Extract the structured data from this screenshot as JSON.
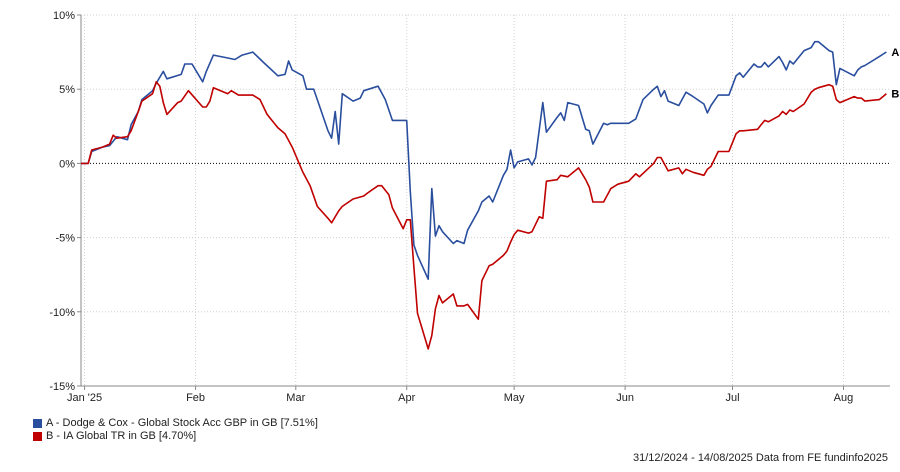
{
  "chart_data": {
    "type": "line",
    "yaxis": {
      "min": -15,
      "max": 10,
      "ticks": [
        10,
        5,
        0,
        -5,
        -10,
        -15
      ],
      "tick_labels": [
        "10%",
        "5%",
        "0%",
        "-5%",
        "-10%",
        "-15%"
      ],
      "zero_line": "dotted black"
    },
    "xaxis": {
      "start": "2024-12-31",
      "end": "2025-08-14",
      "ticks": [
        {
          "date": "2025-01-01",
          "label": "Jan '25"
        },
        {
          "date": "2025-02-01",
          "label": "Feb"
        },
        {
          "date": "2025-03-01",
          "label": "Mar"
        },
        {
          "date": "2025-04-01",
          "label": "Apr"
        },
        {
          "date": "2025-05-01",
          "label": "May"
        },
        {
          "date": "2025-06-01",
          "label": "Jun"
        },
        {
          "date": "2025-07-01",
          "label": "Jul"
        },
        {
          "date": "2025-08-01",
          "label": "Aug"
        }
      ]
    },
    "grid": "vertical at month ticks, horizontal at y ticks",
    "legend_position": "bottom-left",
    "series": [
      {
        "id": "A",
        "name": "A - Dodge & Cox - Global Stock Acc GBP in GB [7.51%]",
        "end_label": "A",
        "color": "#2a4e9e",
        "points": [
          [
            "2024-12-31",
            0.0
          ],
          [
            "2025-01-02",
            0.0
          ],
          [
            "2025-01-03",
            0.8
          ],
          [
            "2025-01-06",
            1.1
          ],
          [
            "2025-01-08",
            1.2
          ],
          [
            "2025-01-10",
            1.8
          ],
          [
            "2025-01-13",
            1.6
          ],
          [
            "2025-01-14",
            2.6
          ],
          [
            "2025-01-16",
            3.5
          ],
          [
            "2025-01-17",
            4.3
          ],
          [
            "2025-01-20",
            4.9
          ],
          [
            "2025-01-21",
            5.4
          ],
          [
            "2025-01-23",
            6.2
          ],
          [
            "2025-01-24",
            5.7
          ],
          [
            "2025-01-28",
            6.0
          ],
          [
            "2025-01-29",
            6.7
          ],
          [
            "2025-01-31",
            6.7
          ],
          [
            "2025-02-03",
            5.5
          ],
          [
            "2025-02-04",
            6.2
          ],
          [
            "2025-02-06",
            7.3
          ],
          [
            "2025-02-10",
            7.1
          ],
          [
            "2025-02-12",
            7.0
          ],
          [
            "2025-02-14",
            7.3
          ],
          [
            "2025-02-17",
            7.5
          ],
          [
            "2025-02-20",
            6.8
          ],
          [
            "2025-02-24",
            5.9
          ],
          [
            "2025-02-26",
            6.0
          ],
          [
            "2025-02-27",
            6.9
          ],
          [
            "2025-02-28",
            6.3
          ],
          [
            "2025-03-03",
            5.9
          ],
          [
            "2025-03-04",
            5.0
          ],
          [
            "2025-03-06",
            5.0
          ],
          [
            "2025-03-07",
            4.3
          ],
          [
            "2025-03-10",
            2.2
          ],
          [
            "2025-03-11",
            1.7
          ],
          [
            "2025-03-12",
            3.5
          ],
          [
            "2025-03-13",
            1.3
          ],
          [
            "2025-03-14",
            4.7
          ],
          [
            "2025-03-17",
            4.2
          ],
          [
            "2025-03-19",
            4.4
          ],
          [
            "2025-03-20",
            4.9
          ],
          [
            "2025-03-24",
            5.2
          ],
          [
            "2025-03-26",
            4.3
          ],
          [
            "2025-03-28",
            2.9
          ],
          [
            "2025-03-31",
            2.9
          ],
          [
            "2025-04-01",
            2.9
          ],
          [
            "2025-04-02",
            -1.9
          ],
          [
            "2025-04-03",
            -5.5
          ],
          [
            "2025-04-04",
            -6.2
          ],
          [
            "2025-04-07",
            -7.8
          ],
          [
            "2025-04-08",
            -1.7
          ],
          [
            "2025-04-09",
            -4.9
          ],
          [
            "2025-04-10",
            -4.2
          ],
          [
            "2025-04-11",
            -4.6
          ],
          [
            "2025-04-14",
            -5.4
          ],
          [
            "2025-04-15",
            -5.2
          ],
          [
            "2025-04-17",
            -5.4
          ],
          [
            "2025-04-18",
            -4.5
          ],
          [
            "2025-04-21",
            -3.2
          ],
          [
            "2025-04-22",
            -2.6
          ],
          [
            "2025-04-24",
            -2.2
          ],
          [
            "2025-04-25",
            -2.6
          ],
          [
            "2025-04-28",
            -0.8
          ],
          [
            "2025-04-29",
            -0.4
          ],
          [
            "2025-04-30",
            0.9
          ],
          [
            "2025-05-01",
            -0.3
          ],
          [
            "2025-05-02",
            0.1
          ],
          [
            "2025-05-05",
            0.3
          ],
          [
            "2025-05-06",
            -0.1
          ],
          [
            "2025-05-07",
            0.4
          ],
          [
            "2025-05-09",
            4.1
          ],
          [
            "2025-05-10",
            2.1
          ],
          [
            "2025-05-13",
            3.1
          ],
          [
            "2025-05-14",
            3.4
          ],
          [
            "2025-05-15",
            2.9
          ],
          [
            "2025-05-16",
            4.1
          ],
          [
            "2025-05-19",
            3.9
          ],
          [
            "2025-05-21",
            2.3
          ],
          [
            "2025-05-22",
            2.2
          ],
          [
            "2025-05-23",
            1.3
          ],
          [
            "2025-05-26",
            2.7
          ],
          [
            "2025-05-27",
            2.6
          ],
          [
            "2025-05-28",
            2.7
          ],
          [
            "2025-06-02",
            2.7
          ],
          [
            "2025-06-04",
            3.0
          ],
          [
            "2025-06-06",
            4.3
          ],
          [
            "2025-06-09",
            5.0
          ],
          [
            "2025-06-10",
            5.2
          ],
          [
            "2025-06-11",
            4.5
          ],
          [
            "2025-06-12",
            4.9
          ],
          [
            "2025-06-13",
            4.2
          ],
          [
            "2025-06-16",
            3.9
          ],
          [
            "2025-06-18",
            4.8
          ],
          [
            "2025-06-20",
            4.5
          ],
          [
            "2025-06-23",
            4.0
          ],
          [
            "2025-06-24",
            3.4
          ],
          [
            "2025-06-25",
            3.9
          ],
          [
            "2025-06-27",
            4.6
          ],
          [
            "2025-06-30",
            4.6
          ],
          [
            "2025-07-02",
            5.9
          ],
          [
            "2025-07-03",
            6.1
          ],
          [
            "2025-07-04",
            5.8
          ],
          [
            "2025-07-07",
            6.7
          ],
          [
            "2025-07-08",
            6.5
          ],
          [
            "2025-07-09",
            6.5
          ],
          [
            "2025-07-10",
            6.8
          ],
          [
            "2025-07-11",
            6.5
          ],
          [
            "2025-07-14",
            7.2
          ],
          [
            "2025-07-15",
            6.8
          ],
          [
            "2025-07-16",
            6.3
          ],
          [
            "2025-07-17",
            6.9
          ],
          [
            "2025-07-18",
            6.7
          ],
          [
            "2025-07-21",
            7.6
          ],
          [
            "2025-07-23",
            7.8
          ],
          [
            "2025-07-24",
            8.2
          ],
          [
            "2025-07-25",
            8.2
          ],
          [
            "2025-07-28",
            7.6
          ],
          [
            "2025-07-29",
            7.5
          ],
          [
            "2025-07-30",
            5.3
          ],
          [
            "2025-07-31",
            6.4
          ],
          [
            "2025-08-04",
            5.9
          ],
          [
            "2025-08-05",
            6.3
          ],
          [
            "2025-08-06",
            6.5
          ],
          [
            "2025-08-07",
            6.6
          ],
          [
            "2025-08-11",
            7.2
          ],
          [
            "2025-08-13",
            7.51
          ]
        ]
      },
      {
        "id": "B",
        "name": "B - IA Global TR in GB [4.70%]",
        "end_label": "B",
        "color": "#c00000",
        "points": [
          [
            "2024-12-31",
            0.0
          ],
          [
            "2025-01-02",
            0.0
          ],
          [
            "2025-01-03",
            0.9
          ],
          [
            "2025-01-06",
            1.1
          ],
          [
            "2025-01-08",
            1.3
          ],
          [
            "2025-01-09",
            1.9
          ],
          [
            "2025-01-10",
            1.7
          ],
          [
            "2025-01-13",
            1.8
          ],
          [
            "2025-01-14",
            2.2
          ],
          [
            "2025-01-16",
            3.5
          ],
          [
            "2025-01-17",
            4.2
          ],
          [
            "2025-01-20",
            4.7
          ],
          [
            "2025-01-21",
            5.5
          ],
          [
            "2025-01-22",
            5.2
          ],
          [
            "2025-01-23",
            4.1
          ],
          [
            "2025-01-24",
            3.3
          ],
          [
            "2025-01-27",
            4.1
          ],
          [
            "2025-01-28",
            4.2
          ],
          [
            "2025-01-30",
            4.9
          ],
          [
            "2025-02-03",
            3.8
          ],
          [
            "2025-02-04",
            3.8
          ],
          [
            "2025-02-05",
            4.2
          ],
          [
            "2025-02-06",
            5.1
          ],
          [
            "2025-02-10",
            4.7
          ],
          [
            "2025-02-11",
            4.9
          ],
          [
            "2025-02-13",
            4.6
          ],
          [
            "2025-02-17",
            4.6
          ],
          [
            "2025-02-19",
            4.3
          ],
          [
            "2025-02-21",
            3.3
          ],
          [
            "2025-02-24",
            2.4
          ],
          [
            "2025-02-26",
            2.0
          ],
          [
            "2025-02-28",
            1.1
          ],
          [
            "2025-03-03",
            -0.6
          ],
          [
            "2025-03-05",
            -1.5
          ],
          [
            "2025-03-07",
            -2.9
          ],
          [
            "2025-03-10",
            -3.7
          ],
          [
            "2025-03-11",
            -4.0
          ],
          [
            "2025-03-13",
            -3.2
          ],
          [
            "2025-03-14",
            -2.9
          ],
          [
            "2025-03-17",
            -2.4
          ],
          [
            "2025-03-20",
            -2.2
          ],
          [
            "2025-03-21",
            -2.0
          ],
          [
            "2025-03-24",
            -1.5
          ],
          [
            "2025-03-25",
            -1.5
          ],
          [
            "2025-03-27",
            -2.1
          ],
          [
            "2025-03-28",
            -3.0
          ],
          [
            "2025-03-31",
            -4.4
          ],
          [
            "2025-04-01",
            -3.8
          ],
          [
            "2025-04-02",
            -3.8
          ],
          [
            "2025-04-03",
            -7.0
          ],
          [
            "2025-04-04",
            -10.1
          ],
          [
            "2025-04-07",
            -12.5
          ],
          [
            "2025-04-08",
            -11.6
          ],
          [
            "2025-04-09",
            -9.8
          ],
          [
            "2025-04-10",
            -8.9
          ],
          [
            "2025-04-11",
            -9.4
          ],
          [
            "2025-04-14",
            -8.8
          ],
          [
            "2025-04-15",
            -9.6
          ],
          [
            "2025-04-17",
            -9.6
          ],
          [
            "2025-04-18",
            -9.5
          ],
          [
            "2025-04-21",
            -10.5
          ],
          [
            "2025-04-22",
            -7.9
          ],
          [
            "2025-04-24",
            -6.9
          ],
          [
            "2025-04-25",
            -6.8
          ],
          [
            "2025-04-28",
            -6.2
          ],
          [
            "2025-04-29",
            -5.9
          ],
          [
            "2025-04-30",
            -5.3
          ],
          [
            "2025-05-01",
            -4.8
          ],
          [
            "2025-05-02",
            -4.5
          ],
          [
            "2025-05-05",
            -4.7
          ],
          [
            "2025-05-06",
            -4.6
          ],
          [
            "2025-05-08",
            -3.6
          ],
          [
            "2025-05-09",
            -3.7
          ],
          [
            "2025-05-10",
            -1.2
          ],
          [
            "2025-05-13",
            -1.1
          ],
          [
            "2025-05-14",
            -0.8
          ],
          [
            "2025-05-16",
            -0.9
          ],
          [
            "2025-05-19",
            -0.3
          ],
          [
            "2025-05-21",
            -1.1
          ],
          [
            "2025-05-22",
            -1.6
          ],
          [
            "2025-05-23",
            -2.6
          ],
          [
            "2025-05-26",
            -2.6
          ],
          [
            "2025-05-28",
            -1.7
          ],
          [
            "2025-05-30",
            -1.4
          ],
          [
            "2025-06-02",
            -1.2
          ],
          [
            "2025-06-04",
            -0.7
          ],
          [
            "2025-06-05",
            -0.9
          ],
          [
            "2025-06-09",
            0.0
          ],
          [
            "2025-06-10",
            0.4
          ],
          [
            "2025-06-11",
            0.4
          ],
          [
            "2025-06-13",
            -0.5
          ],
          [
            "2025-06-16",
            -0.3
          ],
          [
            "2025-06-17",
            -0.7
          ],
          [
            "2025-06-18",
            -0.4
          ],
          [
            "2025-06-20",
            -0.6
          ],
          [
            "2025-06-23",
            -0.8
          ],
          [
            "2025-06-24",
            -0.4
          ],
          [
            "2025-06-25",
            -0.2
          ],
          [
            "2025-06-27",
            0.8
          ],
          [
            "2025-06-30",
            0.8
          ],
          [
            "2025-07-02",
            2.0
          ],
          [
            "2025-07-03",
            2.2
          ],
          [
            "2025-07-04",
            2.2
          ],
          [
            "2025-07-08",
            2.3
          ],
          [
            "2025-07-09",
            2.6
          ],
          [
            "2025-07-10",
            2.9
          ],
          [
            "2025-07-11",
            2.8
          ],
          [
            "2025-07-14",
            3.2
          ],
          [
            "2025-07-15",
            3.5
          ],
          [
            "2025-07-16",
            3.3
          ],
          [
            "2025-07-17",
            3.6
          ],
          [
            "2025-07-18",
            3.5
          ],
          [
            "2025-07-21",
            4.0
          ],
          [
            "2025-07-23",
            4.8
          ],
          [
            "2025-07-24",
            5.0
          ],
          [
            "2025-07-25",
            5.1
          ],
          [
            "2025-07-28",
            5.3
          ],
          [
            "2025-07-29",
            5.2
          ],
          [
            "2025-07-30",
            4.3
          ],
          [
            "2025-07-31",
            4.1
          ],
          [
            "2025-08-04",
            4.5
          ],
          [
            "2025-08-05",
            4.4
          ],
          [
            "2025-08-06",
            4.4
          ],
          [
            "2025-08-07",
            4.2
          ],
          [
            "2025-08-11",
            4.3
          ],
          [
            "2025-08-13",
            4.7
          ]
        ]
      }
    ]
  },
  "legend": [
    {
      "label": "A - Dodge & Cox - Global Stock Acc GBP in GB [7.51%]",
      "color": "#2a4e9e"
    },
    {
      "label": "B - IA Global TR in GB [4.70%]",
      "color": "#c00000"
    }
  ],
  "footer": "31/12/2024 - 14/08/2025 Data from FE fundinfo2025"
}
